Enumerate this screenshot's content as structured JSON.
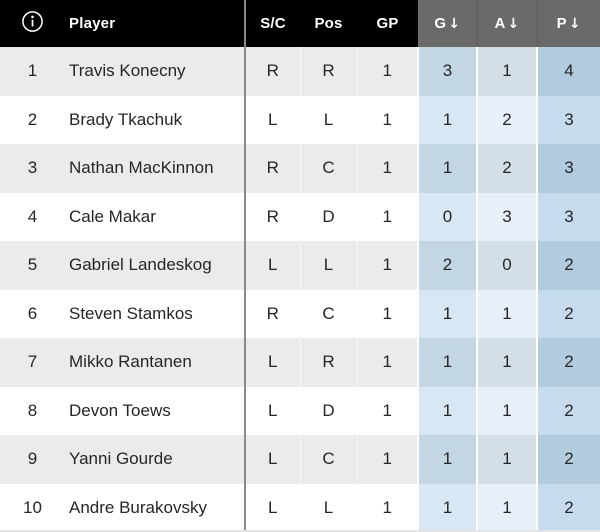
{
  "table": {
    "columns": {
      "player": {
        "label": "Player"
      },
      "sc": {
        "label": "S/C"
      },
      "pos": {
        "label": "Pos"
      },
      "gp": {
        "label": "GP"
      },
      "g": {
        "label": "G",
        "sorted": true
      },
      "a": {
        "label": "A",
        "sorted": true
      },
      "p": {
        "label": "P",
        "sorted": true
      }
    },
    "sort_arrow": "↓",
    "info_icon": "circled-i",
    "rows": [
      {
        "rank": "1",
        "player": "Travis Konecny",
        "sc": "R",
        "pos": "R",
        "gp": "1",
        "g": "3",
        "a": "1",
        "p": "4"
      },
      {
        "rank": "2",
        "player": "Brady Tkachuk",
        "sc": "L",
        "pos": "L",
        "gp": "1",
        "g": "1",
        "a": "2",
        "p": "3"
      },
      {
        "rank": "3",
        "player": "Nathan MacKinnon",
        "sc": "R",
        "pos": "C",
        "gp": "1",
        "g": "1",
        "a": "2",
        "p": "3"
      },
      {
        "rank": "4",
        "player": "Cale Makar",
        "sc": "R",
        "pos": "D",
        "gp": "1",
        "g": "0",
        "a": "3",
        "p": "3"
      },
      {
        "rank": "5",
        "player": "Gabriel Landeskog",
        "sc": "L",
        "pos": "L",
        "gp": "1",
        "g": "2",
        "a": "0",
        "p": "2"
      },
      {
        "rank": "6",
        "player": "Steven Stamkos",
        "sc": "R",
        "pos": "C",
        "gp": "1",
        "g": "1",
        "a": "1",
        "p": "2"
      },
      {
        "rank": "7",
        "player": "Mikko Rantanen",
        "sc": "L",
        "pos": "R",
        "gp": "1",
        "g": "1",
        "a": "1",
        "p": "2"
      },
      {
        "rank": "8",
        "player": "Devon Toews",
        "sc": "L",
        "pos": "D",
        "gp": "1",
        "g": "1",
        "a": "1",
        "p": "2"
      },
      {
        "rank": "9",
        "player": "Yanni Gourde",
        "sc": "L",
        "pos": "C",
        "gp": "1",
        "g": "1",
        "a": "1",
        "p": "2"
      },
      {
        "rank": "10",
        "player": "Andre Burakovsky",
        "sc": "L",
        "pos": "L",
        "gp": "1",
        "g": "1",
        "a": "1",
        "p": "2"
      }
    ]
  },
  "colors": {
    "header_bg": "#000000",
    "header_stat_bg": "#6a6a6a",
    "row_shaded": "#ebebeb",
    "row_plain": "#ffffff",
    "g_on_shaded": "#c2d6e4",
    "g_on_plain": "#d7e7f3",
    "a_on_shaded": "#d3dee6",
    "a_on_plain": "#e7f0f8",
    "p_on_shaded": "#b2ccdf",
    "p_on_plain": "#c6dcee",
    "divider_dark": "#8a8a8a",
    "table_bottom_border": "#e3e3e3",
    "text": "#262626"
  }
}
